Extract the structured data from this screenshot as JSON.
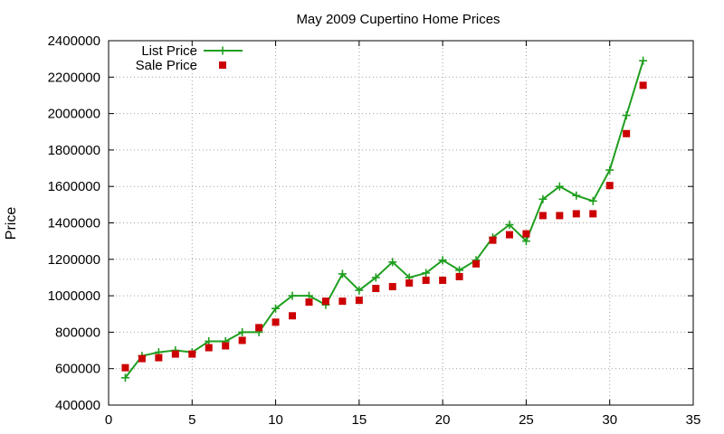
{
  "chart_data": {
    "type": "line",
    "title": "May 2009 Cupertino Home Prices",
    "xlabel": "",
    "ylabel": "Price",
    "xlim": [
      0,
      35
    ],
    "ylim": [
      400000,
      2400000
    ],
    "xticks": [
      0,
      5,
      10,
      15,
      20,
      25,
      30,
      35
    ],
    "yticks": [
      400000,
      600000,
      800000,
      1000000,
      1200000,
      1400000,
      1600000,
      1800000,
      2000000,
      2200000,
      2400000
    ],
    "grid": true,
    "legend_position": "top-left",
    "series": [
      {
        "name": "List Price",
        "style": "linespoints",
        "marker": "plus",
        "color": "#1f9e1f",
        "x": [
          1,
          2,
          3,
          4,
          5,
          6,
          7,
          8,
          9,
          10,
          11,
          12,
          13,
          14,
          15,
          16,
          17,
          18,
          19,
          20,
          21,
          22,
          23,
          24,
          25,
          26,
          27,
          28,
          29,
          30,
          31,
          32
        ],
        "values": [
          550000,
          670000,
          690000,
          700000,
          690000,
          750000,
          750000,
          800000,
          800000,
          930000,
          1000000,
          1000000,
          950000,
          1120000,
          1030000,
          1100000,
          1185000,
          1100000,
          1125000,
          1195000,
          1140000,
          1195000,
          1320000,
          1390000,
          1300000,
          1530000,
          1600000,
          1550000,
          1520000,
          1690000,
          1990000,
          2290000
        ]
      },
      {
        "name": "Sale Price",
        "style": "points",
        "marker": "square",
        "color": "#cc0000",
        "x": [
          1,
          2,
          3,
          4,
          5,
          6,
          7,
          8,
          9,
          10,
          11,
          12,
          13,
          14,
          15,
          16,
          17,
          18,
          19,
          20,
          21,
          22,
          23,
          24,
          25,
          26,
          27,
          28,
          29,
          30,
          31,
          32
        ],
        "values": [
          605000,
          655000,
          660000,
          680000,
          680000,
          715000,
          725000,
          755000,
          825000,
          855000,
          890000,
          965000,
          970000,
          970000,
          975000,
          1040000,
          1050000,
          1070000,
          1085000,
          1085000,
          1105000,
          1175000,
          1305000,
          1335000,
          1340000,
          1440000,
          1440000,
          1450000,
          1450000,
          1605000,
          1890000,
          2155000
        ]
      }
    ]
  }
}
